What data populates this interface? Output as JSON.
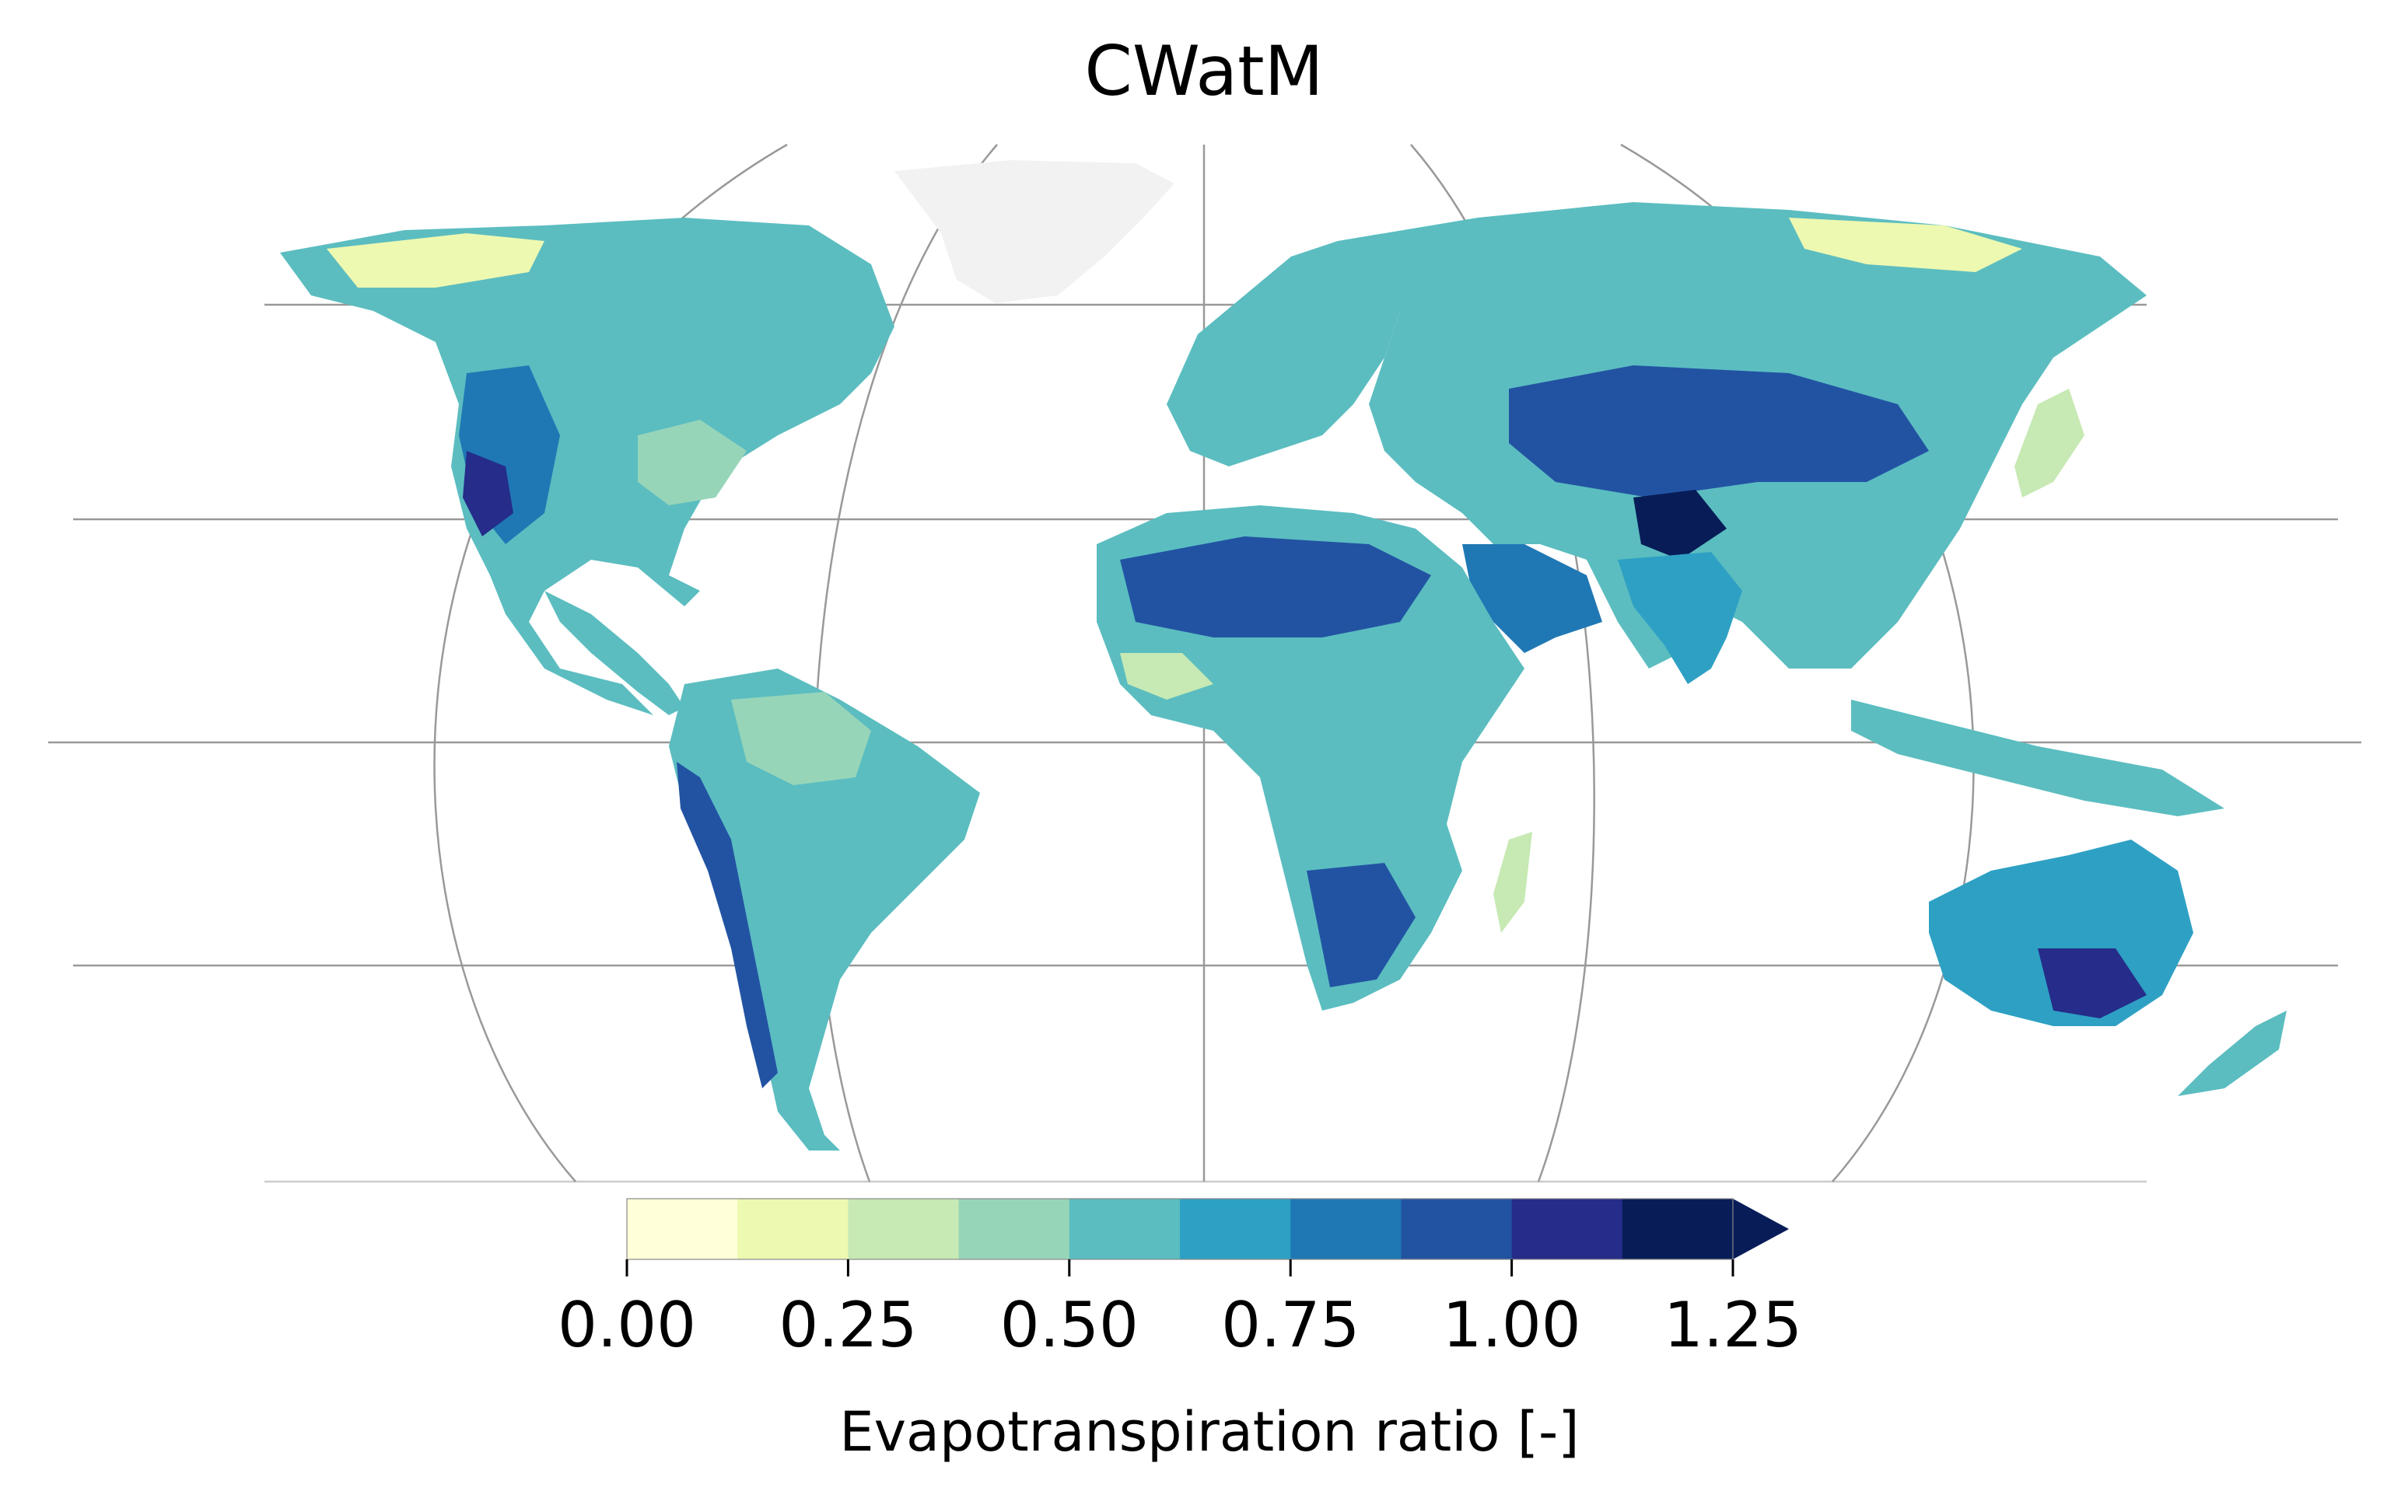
{
  "title": "CWatM",
  "colorbar": {
    "label": "Evapotranspiration ratio [-]",
    "ticks": [
      0.0,
      0.25,
      0.5,
      0.75,
      1.0,
      1.25
    ],
    "tick_labels": [
      "0.00",
      "0.25",
      "0.50",
      "0.75",
      "1.00",
      "1.25"
    ],
    "bounds": [
      0.0,
      0.125,
      0.25,
      0.375,
      0.5,
      0.625,
      0.75,
      0.875,
      1.0,
      1.125,
      1.25
    ],
    "colors": [
      "#ffffd9",
      "#edf8b1",
      "#c7e9b4",
      "#97d5b9",
      "#5bbdc0",
      "#2ea0c4",
      "#1f78b4",
      "#2253a3",
      "#252c8a",
      "#081d58"
    ],
    "extend": "max",
    "extend_color": "#081d58"
  },
  "map": {
    "projection": "Robinson",
    "ocean_color": "#ffffff",
    "gridline_color": "#999999",
    "greenland_color": "#f2f2f2",
    "palette_low": "#edf8b1",
    "palette_mid": "#5bbdc0",
    "palette_high": "#252c8a"
  }
}
